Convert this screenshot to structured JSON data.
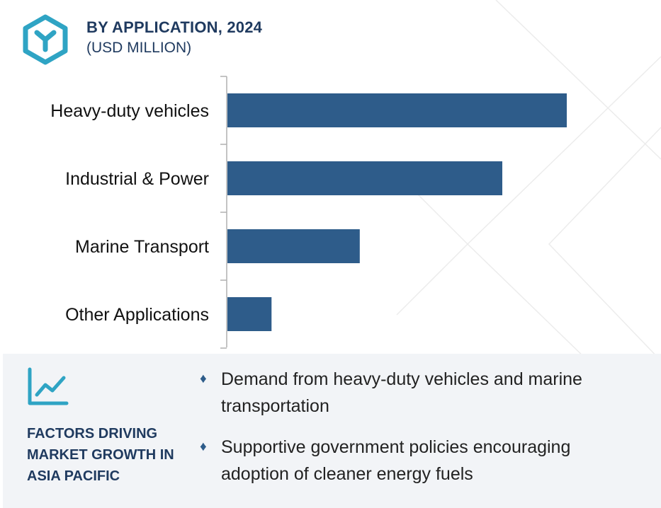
{
  "header": {
    "title": "BY APPLICATION, 2024",
    "subtitle": "(USD MILLION)"
  },
  "colors": {
    "bar": "#2e5c8a",
    "accent": "#2fa4c4",
    "heading": "#1f3a5f",
    "panel_bg": "#f2f4f7"
  },
  "chart_data": {
    "type": "bar",
    "orientation": "horizontal",
    "title": "BY APPLICATION, 2024",
    "subtitle": "(USD MILLION)",
    "categories": [
      "Heavy-duty vehicles",
      "Industrial & Power",
      "Marine Transport",
      "Other Applications"
    ],
    "values": [
      100,
      81,
      39,
      13
    ],
    "xlim": [
      0,
      100
    ],
    "grid": false,
    "axis_ticks_labeled": false
  },
  "factors": {
    "heading": "FACTORS DRIVING MARKET GROWTH IN ASIA PACIFIC",
    "items": [
      {
        "text": "Demand from heavy-duty vehicles and marine transportation"
      },
      {
        "text": "Supportive government policies encouraging adoption of cleaner energy fuels"
      }
    ],
    "bullet": "♦",
    "icon": "trend-line-icon"
  },
  "logo": {
    "icon": "hexagon-y-logo-icon"
  }
}
